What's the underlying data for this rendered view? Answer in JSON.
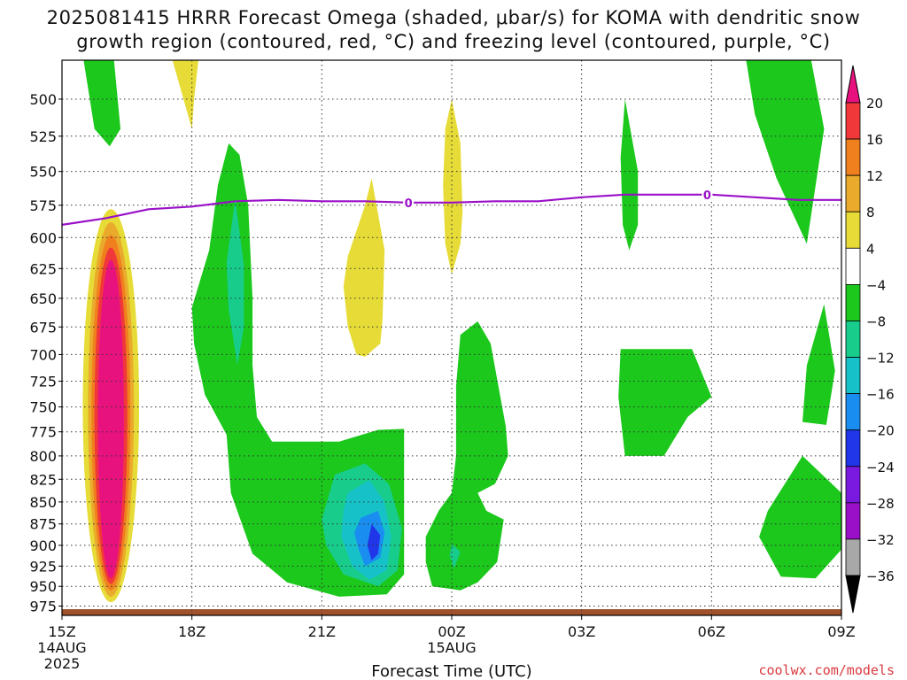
{
  "title": {
    "line1": "2025081415 HRRR Forecast Omega (shaded, μbar/s) for KOMA with dendritic snow",
    "line2": "growth region (contoured, red, °C) and freezing level (contoured, purple, °C)"
  },
  "chart_data": {
    "type": "heatmap",
    "title": "2025081415 HRRR Forecast Omega (shaded, μbar/s) for KOMA with dendritic snow growth region (contoured, red, °C) and freezing level (contoured, purple, °C)",
    "xlabel": "Forecast Time (UTC)",
    "ylabel": "",
    "x_ticks": [
      {
        "h": 0,
        "label": "15Z",
        "sub1": "14AUG",
        "sub2": "2025"
      },
      {
        "h": 3,
        "label": "18Z",
        "sub1": "",
        "sub2": ""
      },
      {
        "h": 6,
        "label": "21Z",
        "sub1": "",
        "sub2": ""
      },
      {
        "h": 9,
        "label": "00Z",
        "sub1": "15AUG",
        "sub2": ""
      },
      {
        "h": 12,
        "label": "03Z",
        "sub1": "",
        "sub2": ""
      },
      {
        "h": 15,
        "label": "06Z",
        "sub1": "",
        "sub2": ""
      },
      {
        "h": 18,
        "label": "09Z",
        "sub1": "",
        "sub2": ""
      }
    ],
    "xlim": [
      0,
      18
    ],
    "y_ticks": [
      500,
      525,
      550,
      575,
      600,
      625,
      650,
      675,
      700,
      725,
      750,
      775,
      800,
      825,
      850,
      875,
      900,
      925,
      950,
      975
    ],
    "ylim_hpa": [
      987,
      475
    ],
    "y_scale": "log-pressure",
    "grid": "dotted",
    "colorbar": {
      "labels": [
        "20",
        "16",
        "12",
        "8",
        "4",
        "−4",
        "−8",
        "−12",
        "−16",
        "−20",
        "−24",
        "−28",
        "−32",
        "−36"
      ],
      "bins": [
        {
          "lo": 20,
          "hi": null,
          "color": "#e8127f"
        },
        {
          "lo": 16,
          "hi": 20,
          "color": "#f0383a"
        },
        {
          "lo": 12,
          "hi": 16,
          "color": "#f07f1e"
        },
        {
          "lo": 8,
          "hi": 12,
          "color": "#eaab2c"
        },
        {
          "lo": 4,
          "hi": 8,
          "color": "#e7dc37"
        },
        {
          "lo": -4,
          "hi": 4,
          "color": "#ffffff"
        },
        {
          "lo": -8,
          "hi": -4,
          "color": "#1bc81b"
        },
        {
          "lo": -12,
          "hi": -8,
          "color": "#18cd8c"
        },
        {
          "lo": -16,
          "hi": -12,
          "color": "#16c2c8"
        },
        {
          "lo": -20,
          "hi": -16,
          "color": "#1a8ef0"
        },
        {
          "lo": -24,
          "hi": -20,
          "color": "#2036e8"
        },
        {
          "lo": -28,
          "hi": -24,
          "color": "#7a1ae0"
        },
        {
          "lo": -32,
          "hi": -28,
          "color": "#9a10c8"
        },
        {
          "lo": -36,
          "hi": -32,
          "color": "#a8a8a8"
        },
        {
          "lo": null,
          "hi": -36,
          "color": "#000000"
        }
      ]
    },
    "freezing_level": {
      "label": "0",
      "color": "#9a10c8",
      "points": [
        [
          0,
          590
        ],
        [
          1,
          585
        ],
        [
          2,
          578
        ],
        [
          3,
          576
        ],
        [
          4,
          572
        ],
        [
          5,
          571
        ],
        [
          6,
          572
        ],
        [
          7,
          572
        ],
        [
          8,
          573
        ],
        [
          9,
          573
        ],
        [
          10,
          572
        ],
        [
          11,
          572
        ],
        [
          12,
          569
        ],
        [
          13,
          567
        ],
        [
          14,
          567
        ],
        [
          15,
          567
        ],
        [
          16,
          569
        ],
        [
          17,
          571
        ],
        [
          18,
          571
        ]
      ],
      "label_positions": [
        [
          8,
          573
        ],
        [
          14.9,
          567
        ]
      ]
    },
    "ground": {
      "color": "#a0522d"
    },
    "omega_regions": [
      {
        "color": "#1bc81b",
        "points": [
          [
            0.5,
            475
          ],
          [
            1.2,
            475
          ],
          [
            1.35,
            520
          ],
          [
            1.1,
            532
          ],
          [
            0.75,
            520
          ]
        ]
      },
      {
        "color": "#e7dc37",
        "points": [
          [
            2.55,
            475
          ],
          [
            3.15,
            475
          ],
          [
            3.05,
            500
          ],
          [
            3.0,
            520
          ]
        ]
      },
      {
        "color": "#1bc81b",
        "points": [
          [
            3.85,
            530
          ],
          [
            4.1,
            538
          ],
          [
            4.3,
            575
          ],
          [
            4.4,
            650
          ],
          [
            4.4,
            710
          ],
          [
            4.5,
            760
          ],
          [
            4.85,
            785
          ],
          [
            6.4,
            785
          ],
          [
            7.3,
            773
          ],
          [
            7.9,
            772
          ],
          [
            7.9,
            935
          ],
          [
            7.5,
            960
          ],
          [
            6.4,
            963
          ],
          [
            5.2,
            945
          ],
          [
            4.4,
            910
          ],
          [
            3.9,
            840
          ],
          [
            3.8,
            778
          ],
          [
            3.3,
            738
          ],
          [
            3.05,
            690
          ],
          [
            3.0,
            658
          ],
          [
            3.4,
            610
          ],
          [
            3.6,
            560
          ]
        ]
      },
      {
        "color": "#18cd8c",
        "points": [
          [
            4.0,
            570
          ],
          [
            4.2,
            622
          ],
          [
            4.2,
            675
          ],
          [
            4.05,
            710
          ],
          [
            3.85,
            660
          ],
          [
            3.8,
            620
          ]
        ]
      },
      {
        "color": "#18cd8c",
        "points": [
          [
            6.3,
            820
          ],
          [
            7.0,
            808
          ],
          [
            7.55,
            830
          ],
          [
            7.85,
            880
          ],
          [
            7.75,
            930
          ],
          [
            7.3,
            950
          ],
          [
            6.5,
            935
          ],
          [
            6.1,
            900
          ],
          [
            6.0,
            870
          ]
        ]
      },
      {
        "color": "#16c2c8",
        "points": [
          [
            6.6,
            840
          ],
          [
            7.1,
            826
          ],
          [
            7.45,
            850
          ],
          [
            7.6,
            890
          ],
          [
            7.5,
            930
          ],
          [
            7.1,
            942
          ],
          [
            6.7,
            925
          ],
          [
            6.45,
            890
          ],
          [
            6.5,
            860
          ]
        ]
      },
      {
        "color": "#1a8ef0",
        "points": [
          [
            6.9,
            868
          ],
          [
            7.3,
            860
          ],
          [
            7.45,
            885
          ],
          [
            7.35,
            915
          ],
          [
            7.0,
            925
          ],
          [
            6.85,
            905
          ],
          [
            6.75,
            885
          ]
        ]
      },
      {
        "color": "#2036e8",
        "points": [
          [
            7.15,
            875
          ],
          [
            7.35,
            888
          ],
          [
            7.3,
            910
          ],
          [
            7.15,
            918
          ],
          [
            7.05,
            900
          ]
        ]
      },
      {
        "color": "#e7dc37",
        "points": [
          [
            7.15,
            555
          ],
          [
            7.45,
            610
          ],
          [
            7.4,
            670
          ],
          [
            7.35,
            690
          ],
          [
            7.0,
            702
          ],
          [
            6.8,
            700
          ],
          [
            6.6,
            675
          ],
          [
            6.5,
            640
          ],
          [
            6.6,
            615
          ],
          [
            7.0,
            575
          ]
        ]
      },
      {
        "color": "#e7dc37",
        "points": [
          [
            9.0,
            500
          ],
          [
            9.2,
            530
          ],
          [
            9.25,
            580
          ],
          [
            9.2,
            605
          ],
          [
            9.0,
            630
          ],
          [
            8.85,
            605
          ],
          [
            8.8,
            560
          ],
          [
            8.85,
            520
          ]
        ]
      },
      {
        "color": "#1bc81b",
        "points": [
          [
            9.2,
            682
          ],
          [
            9.6,
            670
          ],
          [
            9.9,
            690
          ],
          [
            10.1,
            735
          ],
          [
            10.25,
            770
          ],
          [
            10.3,
            800
          ],
          [
            10.0,
            830
          ],
          [
            9.6,
            840
          ],
          [
            9.8,
            860
          ],
          [
            10.2,
            870
          ],
          [
            10.05,
            920
          ],
          [
            9.6,
            945
          ],
          [
            9.2,
            955
          ],
          [
            8.55,
            950
          ],
          [
            8.4,
            920
          ],
          [
            8.4,
            890
          ],
          [
            8.7,
            860
          ],
          [
            9.0,
            840
          ],
          [
            9.1,
            800
          ],
          [
            9.1,
            730
          ]
        ]
      },
      {
        "color": "#1bc81b",
        "points": [
          [
            13.0,
            500
          ],
          [
            13.3,
            550
          ],
          [
            13.3,
            590
          ],
          [
            13.1,
            610
          ],
          [
            12.95,
            590
          ],
          [
            12.9,
            540
          ]
        ]
      },
      {
        "color": "#1bc81b",
        "points": [
          [
            12.9,
            695
          ],
          [
            14.55,
            695
          ],
          [
            15.0,
            740
          ],
          [
            14.45,
            760
          ],
          [
            13.9,
            800
          ],
          [
            13.0,
            800
          ],
          [
            12.85,
            740
          ]
        ]
      },
      {
        "color": "#1bc81b",
        "points": [
          [
            15.8,
            475
          ],
          [
            17.3,
            475
          ],
          [
            17.6,
            520
          ],
          [
            17.2,
            605
          ],
          [
            16.5,
            555
          ],
          [
            16.0,
            510
          ]
        ]
      },
      {
        "color": "#1bc81b",
        "points": [
          [
            17.6,
            655
          ],
          [
            17.85,
            715
          ],
          [
            17.65,
            768
          ],
          [
            17.1,
            765
          ],
          [
            17.2,
            710
          ]
        ]
      },
      {
        "color": "#1bc81b",
        "points": [
          [
            17.1,
            800
          ],
          [
            18.0,
            840
          ],
          [
            18.0,
            905
          ],
          [
            17.4,
            940
          ],
          [
            16.6,
            938
          ],
          [
            16.1,
            890
          ],
          [
            16.3,
            860
          ]
        ]
      }
    ],
    "omega_core": {
      "rings": [
        {
          "color": "#e7dc37",
          "cx": 1.13,
          "cy_hpa": 768,
          "ry_top_hpa": 578,
          "ry_bot_hpa": 970,
          "halfwidth": 0.65
        },
        {
          "color": "#eaab2c",
          "cx": 1.13,
          "cy_hpa": 768,
          "ry_top_hpa": 588,
          "ry_bot_hpa": 963,
          "halfwidth": 0.53
        },
        {
          "color": "#f07f1e",
          "cx": 1.13,
          "cy_hpa": 768,
          "ry_top_hpa": 598,
          "ry_bot_hpa": 955,
          "halfwidth": 0.45
        },
        {
          "color": "#f0383a",
          "cx": 1.13,
          "cy_hpa": 768,
          "ry_top_hpa": 608,
          "ry_bot_hpa": 947,
          "halfwidth": 0.38
        },
        {
          "color": "#e8127f",
          "cx": 1.13,
          "cy_hpa": 768,
          "ry_top_hpa": 618,
          "ry_bot_hpa": 940,
          "halfwidth": 0.3
        }
      ],
      "small_cyan": {
        "color": "#18cd8c",
        "points": [
          [
            9.0,
            898
          ],
          [
            9.2,
            908
          ],
          [
            9.05,
            928
          ],
          [
            8.95,
            912
          ]
        ]
      }
    }
  },
  "credit": "coolwx.com/models"
}
